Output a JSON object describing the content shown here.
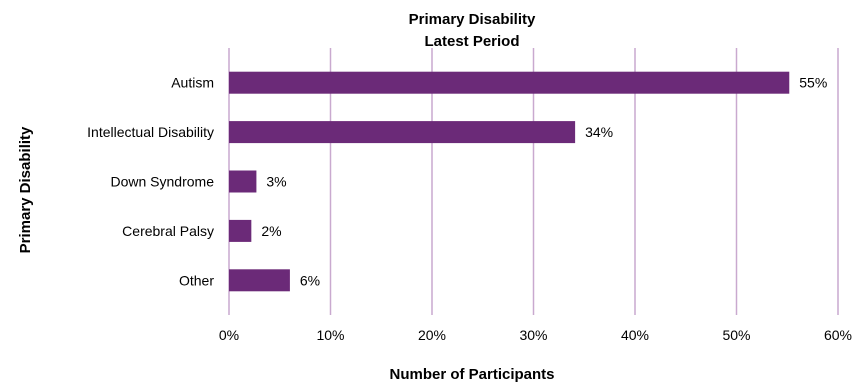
{
  "chart_data": {
    "type": "bar",
    "orientation": "horizontal",
    "title": "Primary Disability",
    "subtitle": "Latest Period",
    "xlabel": "Number of Participants",
    "ylabel": "Primary Disability",
    "categories": [
      "Autism",
      "Intellectual Disability",
      "Down Syndrome",
      "Cerebral Palsy",
      "Other"
    ],
    "values": [
      55,
      34,
      3,
      2,
      6
    ],
    "value_display": [
      55.2,
      34.1,
      2.7,
      2.2,
      6.0
    ],
    "data_labels": [
      "55%",
      "34%",
      "3%",
      "2%",
      "6%"
    ],
    "xlim": [
      0,
      60
    ],
    "x_ticks": [
      0,
      10,
      20,
      30,
      40,
      50,
      60
    ],
    "x_tick_labels": [
      "0%",
      "10%",
      "20%",
      "30%",
      "40%",
      "50%",
      "60%"
    ],
    "grid": true,
    "legend": "none",
    "colors": {
      "bar": "#6b2a78",
      "gridline": "#c9a9cf"
    }
  }
}
